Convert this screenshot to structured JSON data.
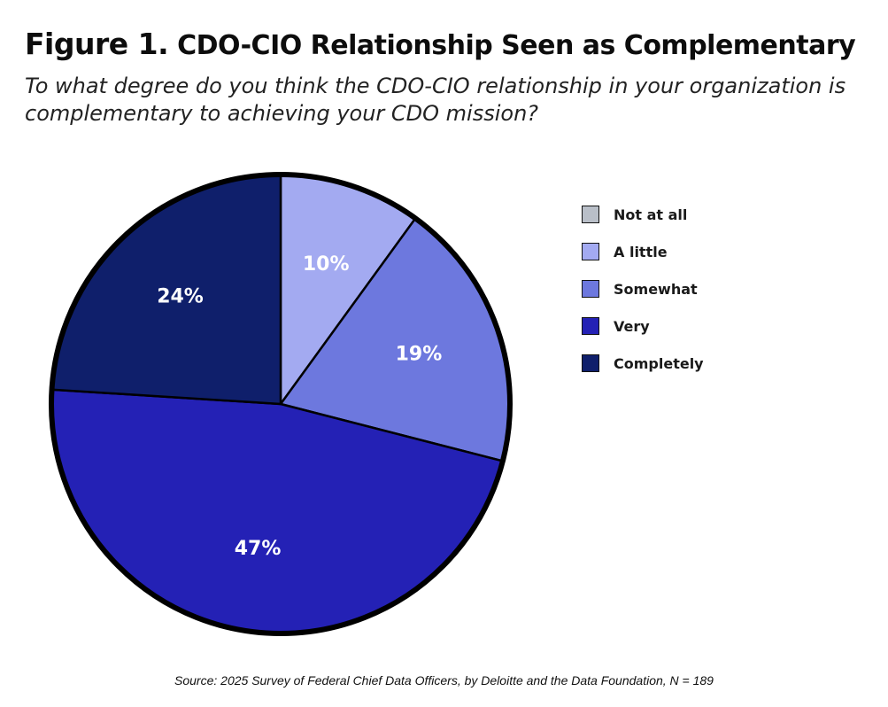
{
  "figure_label": "Figure 1.",
  "title_text": "CDO-CIO Relationship Seen as Complementary",
  "subtitle": "To what degree do you think the CDO-CIO relationship in your organization is complementary to achieving your CDO mission?",
  "source": "Source: 2025 Survey of Federal Chief Data Officers, by Deloitte and the Data Foundation, N = 189",
  "chart_data": {
    "type": "pie",
    "title": "Figure 1. CDO-CIO Relationship Seen as Complementary",
    "subtitle": "To what degree do you think the CDO-CIO relationship in your organization is complementary to achieving your CDO mission?",
    "legend_position": "right",
    "categories": [
      "Not at all",
      "A little",
      "Somewhat",
      "Very",
      "Completely"
    ],
    "values": [
      0,
      10,
      19,
      47,
      24
    ],
    "data_labels": [
      "",
      "10%",
      "19%",
      "47%",
      "24%"
    ],
    "colors": [
      "#b9bfc8",
      "#a3aaf1",
      "#6d78de",
      "#2421b5",
      "#0f1f6b"
    ],
    "unit": "%"
  }
}
